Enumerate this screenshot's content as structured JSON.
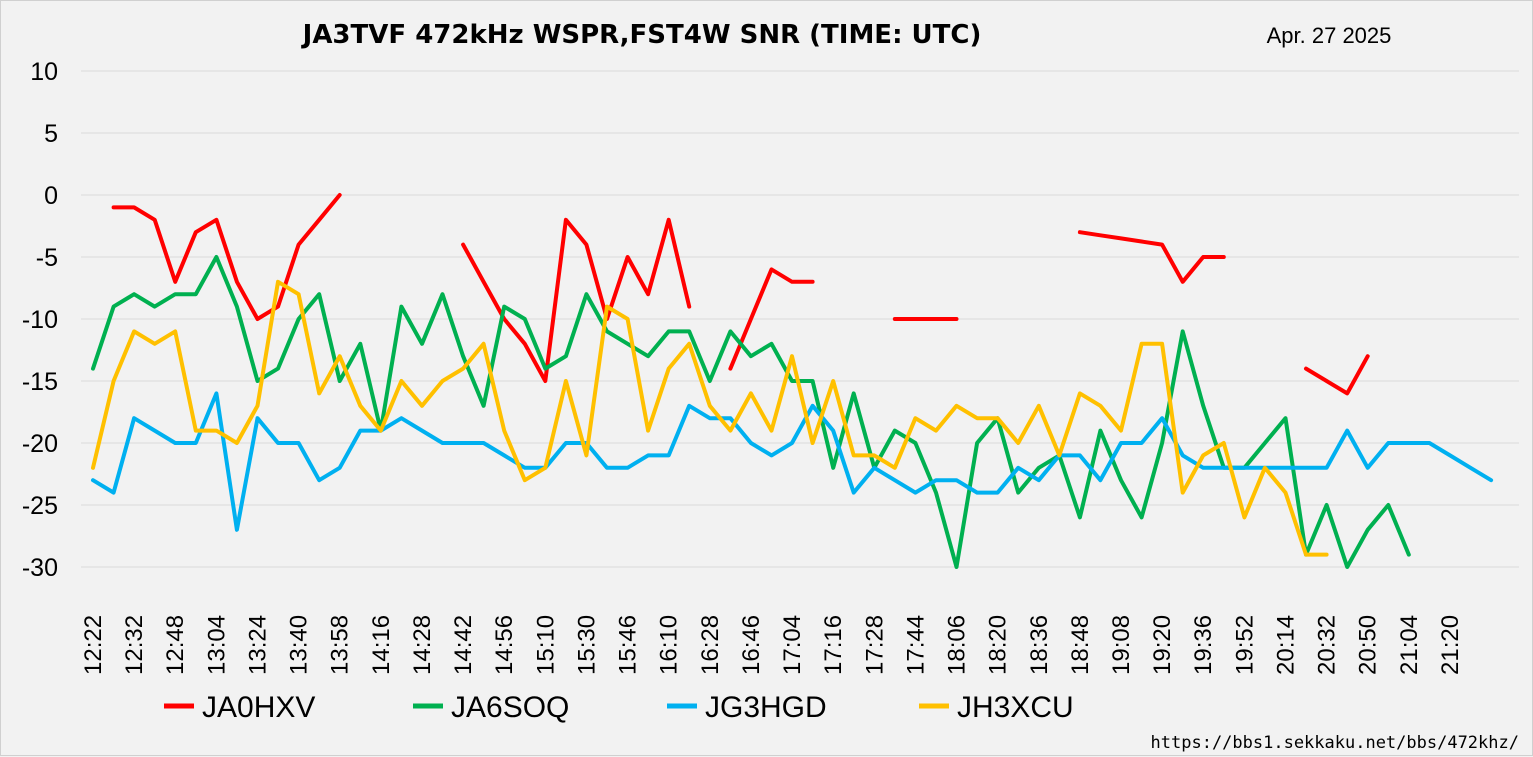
{
  "chart_data": {
    "type": "line",
    "title": "JA3TVF 472kHz WSPR,FST4W SNR (TIME: UTC)",
    "date": "Apr. 27 2025",
    "url": "https://bbs1.sekkaku.net/bbs/472khz/",
    "xlabel": "",
    "ylabel": "",
    "ylim": [
      -30,
      10
    ],
    "yticks": [
      10,
      5,
      0,
      -5,
      -10,
      -15,
      -20,
      -25,
      -30
    ],
    "grid": true,
    "legend_position": "bottom",
    "x_slots": 69,
    "xtick_labels": [
      "12:22",
      "12:32",
      "12:48",
      "13:04",
      "13:24",
      "13:40",
      "13:58",
      "14:16",
      "14:28",
      "14:42",
      "14:56",
      "15:10",
      "15:30",
      "15:46",
      "16:10",
      "16:28",
      "16:46",
      "17:04",
      "17:16",
      "17:28",
      "17:44",
      "18:06",
      "18:20",
      "18:36",
      "18:48",
      "19:08",
      "19:20",
      "19:36",
      "19:52",
      "20:14",
      "20:32",
      "20:50",
      "21:04",
      "21:20"
    ],
    "series": [
      {
        "name": "JA0HXV",
        "color": "#ff0000",
        "values": [
          null,
          -1,
          -1,
          -2,
          -7,
          -3,
          -2,
          -7,
          -10,
          -9,
          -4,
          -2,
          0,
          null,
          null,
          null,
          null,
          null,
          -4,
          -7,
          -10,
          -12,
          -15,
          -2,
          -4,
          -10,
          -5,
          -8,
          -2,
          -9,
          null,
          -14,
          -10,
          -6,
          -7,
          -7,
          null,
          null,
          null,
          -10,
          -10,
          -10,
          -10,
          null,
          null,
          null,
          null,
          null,
          -3,
          -3.25,
          -3.5,
          -3.75,
          -4,
          -7,
          -5,
          -5,
          null,
          null,
          null,
          -14,
          -15,
          -16,
          -13,
          null,
          null,
          null,
          null,
          null,
          null
        ]
      },
      {
        "name": "JA6SOQ",
        "color": "#00b050",
        "values": [
          -14,
          -9,
          -8,
          -9,
          -8,
          -8,
          -5,
          -9,
          -15,
          -14,
          -10,
          -8,
          -15,
          -12,
          -19,
          -9,
          -12,
          -8,
          -13,
          -17,
          -9,
          -10,
          -14,
          -13,
          -8,
          -11,
          -12,
          -13,
          -11,
          -11,
          -15,
          -11,
          -13,
          -12,
          -15,
          -15,
          -22,
          -16,
          -22,
          -19,
          -20,
          -24,
          -30,
          -20,
          -18,
          -24,
          -22,
          -21,
          -26,
          -19,
          -23,
          -26,
          -20,
          -11,
          -17,
          -22,
          -22,
          -20,
          -18,
          -29,
          -25,
          -30,
          -27,
          -25,
          -29,
          null,
          null,
          null,
          null
        ]
      },
      {
        "name": "JG3HGD",
        "color": "#00b0f0",
        "values": [
          -23,
          -24,
          -18,
          -19,
          -20,
          -20,
          -16,
          -27,
          -18,
          -20,
          -20,
          -23,
          -22,
          -19,
          -19,
          -18,
          -19,
          -20,
          -20,
          -20,
          -21,
          -22,
          -22,
          -20,
          -20,
          -22,
          -22,
          -21,
          -21,
          -17,
          -18,
          -18,
          -20,
          -21,
          -20,
          -17,
          -19,
          -24,
          -22,
          -23,
          -24,
          -23,
          -23,
          -24,
          -24,
          -22,
          -23,
          -21,
          -21,
          -23,
          -20,
          -20,
          -18,
          -21,
          -22,
          -22,
          -22,
          -22,
          -22,
          -22,
          -22,
          -19,
          -22,
          -20,
          -20,
          -20,
          -21,
          -22,
          -23
        ]
      },
      {
        "name": "JH3XCU",
        "color": "#ffc000",
        "values": [
          -22,
          -15,
          -11,
          -12,
          -11,
          -19,
          -19,
          -20,
          -17,
          -7,
          -8,
          -16,
          -13,
          -17,
          -19,
          -15,
          -17,
          -15,
          -14,
          -12,
          -19,
          -23,
          -22,
          -15,
          -21,
          -9,
          -10,
          -19,
          -14,
          -12,
          -17,
          -19,
          -16,
          -19,
          -13,
          -20,
          -15,
          -21,
          -21,
          -22,
          -18,
          -19,
          -17,
          -18,
          -18,
          -20,
          -17,
          -21,
          -16,
          -17,
          -19,
          -12,
          -12,
          -24,
          -21,
          -20,
          -26,
          -22,
          -24,
          -29,
          -29,
          null,
          null,
          null,
          null,
          null,
          null,
          null,
          null
        ]
      }
    ]
  }
}
